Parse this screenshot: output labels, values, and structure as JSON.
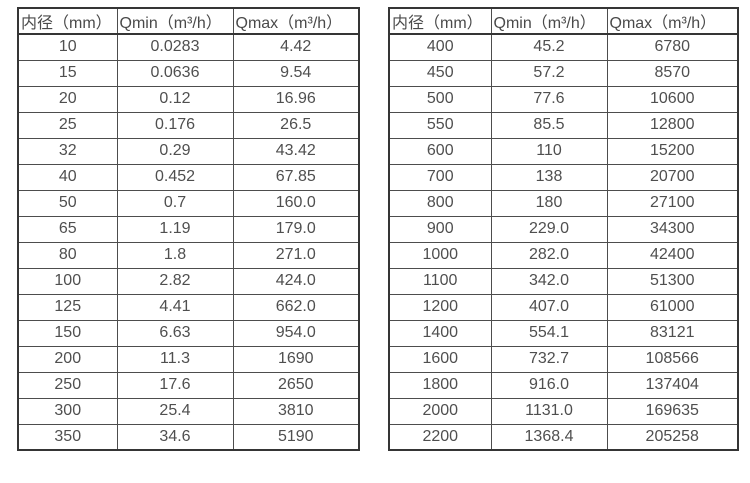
{
  "page": {
    "background_color": "#ffffff",
    "text_color": "#4a4a4a",
    "border_color": "#353535"
  },
  "tables": [
    {
      "name": "small-diameter-flow-table",
      "headers": {
        "diameter": "内径（mm）",
        "qmin": "Qmin（m³/h）",
        "qmax": "Qmax（m³/h）"
      },
      "rows": [
        [
          "10",
          "0.0283",
          "4.42"
        ],
        [
          "15",
          "0.0636",
          "9.54"
        ],
        [
          "20",
          "0.12",
          "16.96"
        ],
        [
          "25",
          "0.176",
          "26.5"
        ],
        [
          "32",
          "0.29",
          "43.42"
        ],
        [
          "40",
          "0.452",
          "67.85"
        ],
        [
          "50",
          "0.7",
          "160.0"
        ],
        [
          "65",
          "1.19",
          "179.0"
        ],
        [
          "80",
          "1.8",
          "271.0"
        ],
        [
          "100",
          "2.82",
          "424.0"
        ],
        [
          "125",
          "4.41",
          "662.0"
        ],
        [
          "150",
          "6.63",
          "954.0"
        ],
        [
          "200",
          "11.3",
          "1690"
        ],
        [
          "250",
          "17.6",
          "2650"
        ],
        [
          "300",
          "25.4",
          "3810"
        ],
        [
          "350",
          "34.6",
          "5190"
        ]
      ]
    },
    {
      "name": "large-diameter-flow-table",
      "headers": {
        "diameter": "内径（mm）",
        "qmin": "Qmin（m³/h）",
        "qmax": "Qmax（m³/h）"
      },
      "rows": [
        [
          "400",
          "45.2",
          "6780"
        ],
        [
          "450",
          "57.2",
          "8570"
        ],
        [
          "500",
          "77.6",
          "10600"
        ],
        [
          "550",
          "85.5",
          "12800"
        ],
        [
          "600",
          "110",
          "15200"
        ],
        [
          "700",
          "138",
          "20700"
        ],
        [
          "800",
          "180",
          "27100"
        ],
        [
          "900",
          "229.0",
          "34300"
        ],
        [
          "1000",
          "282.0",
          "42400"
        ],
        [
          "1100",
          "342.0",
          "51300"
        ],
        [
          "1200",
          "407.0",
          "61000"
        ],
        [
          "1400",
          "554.1",
          "83121"
        ],
        [
          "1600",
          "732.7",
          "108566"
        ],
        [
          "1800",
          "916.0",
          "137404"
        ],
        [
          "2000",
          "1131.0",
          "169635"
        ],
        [
          "2200",
          "1368.4",
          "205258"
        ]
      ]
    }
  ]
}
